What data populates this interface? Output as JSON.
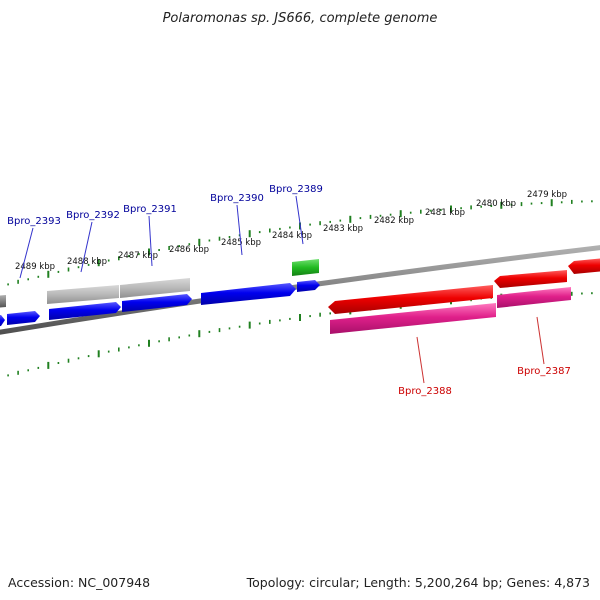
{
  "title": "Polaromonas sp. JS666, complete genome",
  "footer": {
    "accession": "Accession: NC_007948",
    "summary": "Topology: circular; Length: 5,200,264 bp; Genes: 4,873"
  },
  "colors": {
    "backbone": "#808080",
    "forward_cds": "#0000ee",
    "reverse_cds": "#ee0000",
    "rrna_like": "#22bb22",
    "gene_grey": "#b8b8b8",
    "reverse_pink": "#e0208a",
    "ticks": "#208020",
    "label_forward": "#00009a",
    "label_reverse": "#cc0000"
  },
  "tick_labels": [
    "2489 kbp",
    "2488 kbp",
    "2487 kbp",
    "2486 kbp",
    "2485 kbp",
    "2484 kbp",
    "2483 kbp",
    "2482 kbp",
    "2481 kbp",
    "2480 kbp",
    "2479 kbp"
  ],
  "gene_labels_forward": [
    "Bpro_2393",
    "Bpro_2392",
    "Bpro_2391",
    "Bpro_2390",
    "Bpro_2389"
  ],
  "gene_labels_reverse": [
    "Bpro_2388",
    "Bpro_2387"
  ]
}
